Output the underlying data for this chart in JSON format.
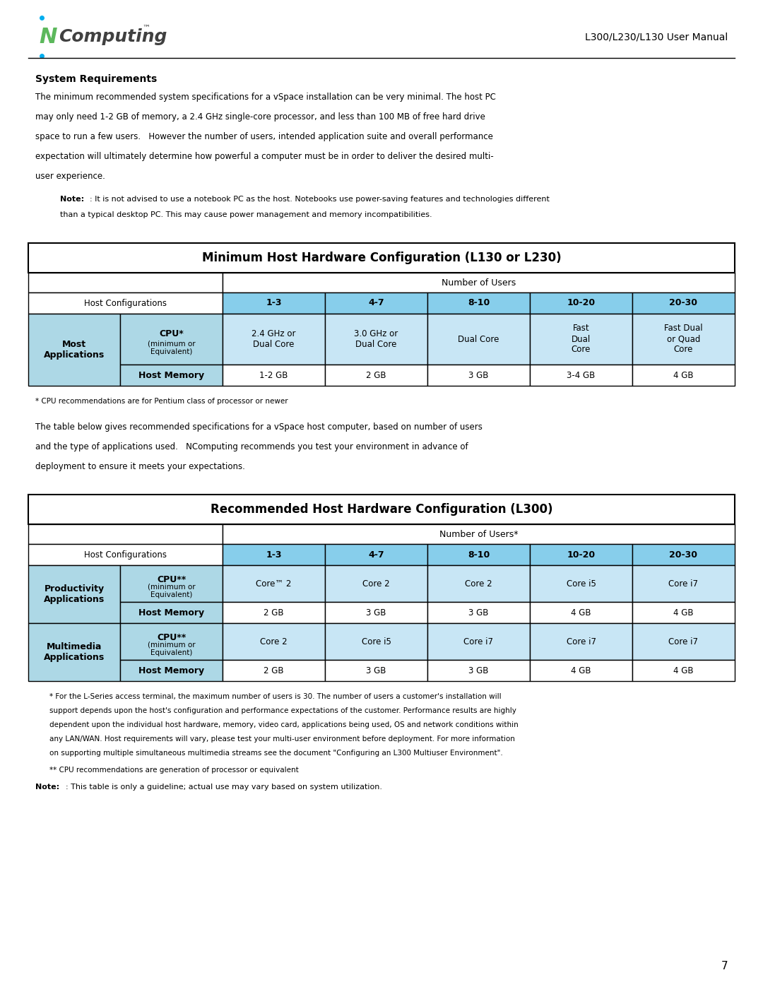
{
  "page_title": "L300/L230/L130 User Manual",
  "section_title": "System Requirements",
  "body_text": "The minimum recommended system specifications for a vSpace installation can be very minimal. The host PC\nmay only need 1-2 GB of memory, a 2.4 GHz single-core processor, and less than 100 MB of free hard drive\nspace to run a few users.   However the number of users, intended application suite and overall performance\nexpectation will ultimately determine how powerful a computer must be in order to deliver the desired multi-\nuser experience.",
  "note_text": "Note: It is not advised to use a notebook PC as the host. Notebooks use power-saving features and technologies different\nthan a typical desktop PC. This may cause power management and memory incompatibilities.",
  "table1_title": "Minimum Host Hardware Configuration (L130 or L230)",
  "table1_col_header": "Number of Users",
  "table1_row_header": "Host Configurations",
  "table1_cols": [
    "1-3",
    "4-7",
    "8-10",
    "10-20",
    "20-30"
  ],
  "table1_row1_label": "Most\nApplications",
  "table1_row1_sub1": "CPU* (minimum or\nEquivalent)",
  "table1_row1_sub2": "Host Memory",
  "table1_data": [
    [
      "2.4 GHz or\nDual Core",
      "3.0 GHz or\nDual Core",
      "Dual Core",
      "Fast\nDual\nCore",
      "Fast Dual\nor Quad\nCore"
    ],
    [
      "1-2 GB",
      "2 GB",
      "3 GB",
      "3-4 GB",
      "4 GB"
    ]
  ],
  "table1_footnote": "* CPU recommendations are for Pentium class of processor or newer",
  "between_text": "The table below gives recommended specifications for a vSpace host computer, based on number of users\nand the type of applications used.   NComputing recommends you test your environment in advance of\ndeployment to ensure it meets your expectations.",
  "table2_title": "Recommended Host Hardware Configuration (L300)",
  "table2_col_header": "Number of Users*",
  "table2_row_header": "Host Configurations",
  "table2_cols": [
    "1-3",
    "4-7",
    "8-10",
    "10-20",
    "20-30"
  ],
  "table2_row1_label": "Productivity\nApplications",
  "table2_row1_sub1": "CPU** (minimum or\nEquivalent)",
  "table2_row1_sub2": "Host Memory",
  "table2_row2_label": "Multimedia\nApplications",
  "table2_row2_sub1": "CPU** (minimum or\nEquivalent)",
  "table2_row2_sub2": "Host Memory",
  "table2_data_r1": [
    [
      "Core™ 2",
      "Core 2",
      "Core 2",
      "Core i5",
      "Core i7"
    ],
    [
      "2 GB",
      "3 GB",
      "3 GB",
      "4 GB",
      "4 GB"
    ]
  ],
  "table2_data_r2": [
    [
      "Core 2",
      "Core i5",
      "Core i7",
      "Core i7",
      "Core i7"
    ],
    [
      "2 GB",
      "3 GB",
      "3 GB",
      "4 GB",
      "4 GB"
    ]
  ],
  "footnote2_text": "* For the L-Series access terminal, the maximum number of users is 30. The number of users a customer's installation will\nsupport depends upon the host's configuration and performance expectations of the customer. Performance results are highly\ndependent upon the individual host hardware, memory, video card, applications being used, OS and network conditions within\nany LAN/WAN. Host requirements will vary, please test your multi-user environment before deployment. For more information\non supporting multiple simultaneous multimedia streams see the document \"Configuring an L300 Multiuser Environment\".",
  "footnote2b_text": "** CPU recommendations are generation of processor or equivalent",
  "note2_text": "Note: This table is only a guideline; actual use may vary based on system utilization.",
  "page_number": "7",
  "bg_color": "#ffffff",
  "header_blue": "#87CEEB",
  "cell_blue": "#ADD8E6",
  "light_blue": "#c8e6f5",
  "border_color": "#000000",
  "logo_green": "#5cb85c",
  "logo_blue": "#00AEEF"
}
